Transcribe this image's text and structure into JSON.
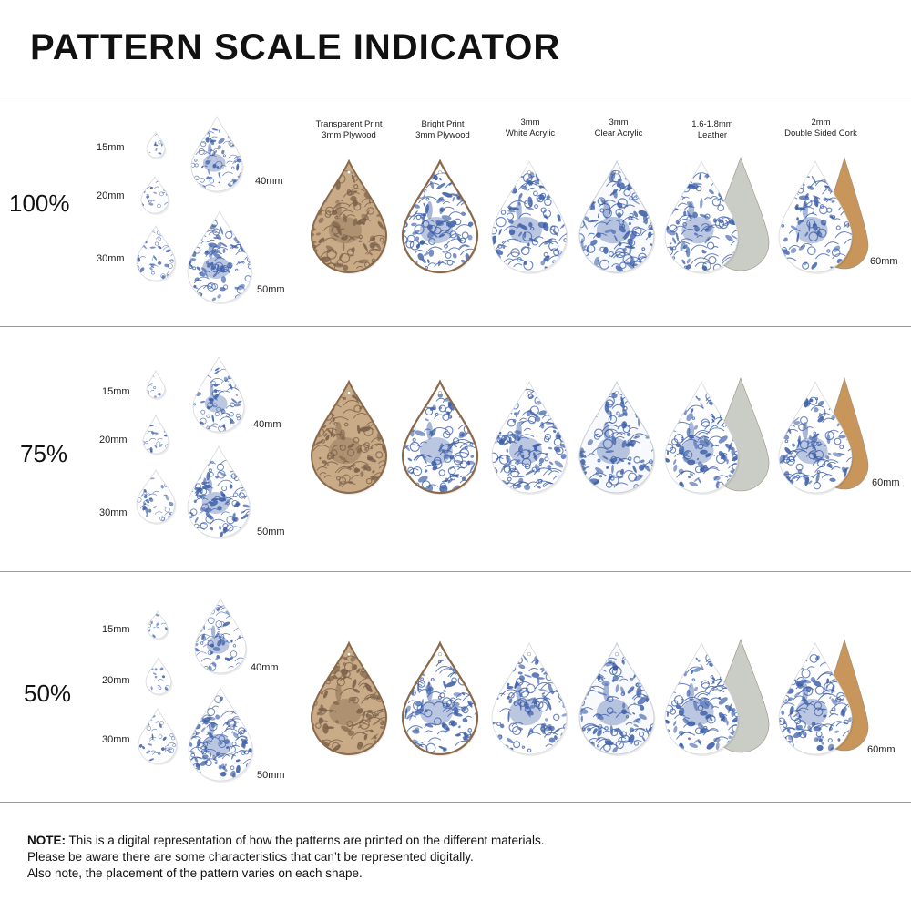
{
  "title": "PATTERN SCALE INDICATOR",
  "scales": [
    "100%",
    "75%",
    "50%"
  ],
  "size_labels": [
    "15mm",
    "20mm",
    "30mm",
    "40mm",
    "50mm",
    "60mm"
  ],
  "materials": [
    {
      "line1": "Transparent Print",
      "line2": "3mm Plywood"
    },
    {
      "line1": "Bright Print",
      "line2": "3mm Plywood"
    },
    {
      "line1": "3mm",
      "line2": "White Acrylic"
    },
    {
      "line1": "3mm",
      "line2": "Clear Acrylic"
    },
    {
      "line1": "1.6-1.8mm",
      "line2": "Leather"
    },
    {
      "line1": "2mm",
      "line2": "Double Sided Cork"
    }
  ],
  "note": {
    "lead": "NOTE:",
    "line1": " This is a digital representation of how the patterns are printed on the different materials.",
    "line2": "Please be aware there are some characteristics that can’t be represented digitally.",
    "line3": "Also note, the placement of the pattern varies on each shape."
  },
  "colors": {
    "pattern_blue": "#3d5fa8",
    "plywood": "#c9ab88",
    "plywood_edge": "#8a6a4a",
    "leather_back": "#c9cdc6",
    "cork": "#c8955a"
  }
}
